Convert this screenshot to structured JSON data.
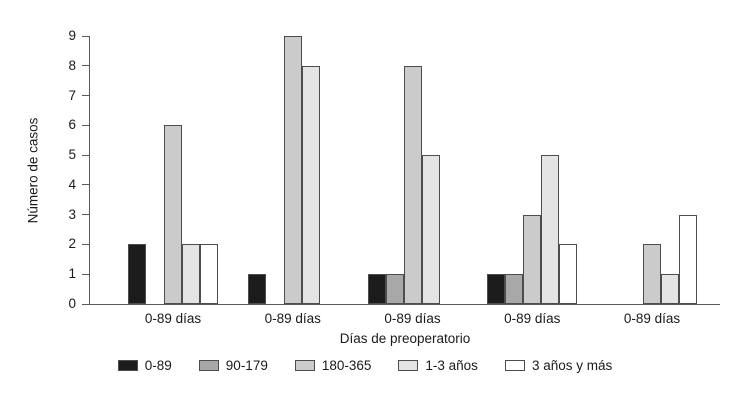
{
  "chart_data": {
    "type": "bar",
    "title": "",
    "xlabel": "Días de preoperatorio",
    "ylabel": "Número de casos",
    "categories": [
      "0-89 días",
      "0-89 días",
      "0-89 días",
      "0-89 días",
      "0-89 días"
    ],
    "series": [
      {
        "name": "0-89",
        "color": "#1c1c1c",
        "values": [
          2,
          1,
          1,
          1,
          0
        ]
      },
      {
        "name": "90-179",
        "color": "#a8a8a8",
        "values": [
          0,
          0,
          1,
          1,
          0
        ]
      },
      {
        "name": "180-365",
        "color": "#cbcbcb",
        "values": [
          6,
          9,
          8,
          3,
          2
        ]
      },
      {
        "name": "1-3 años",
        "color": "#e4e4e4",
        "values": [
          2,
          8,
          5,
          5,
          1
        ]
      },
      {
        "name": "3 años y más",
        "color": "#ffffff",
        "values": [
          2,
          0,
          0,
          2,
          3
        ]
      }
    ],
    "ylim": [
      0,
      9
    ],
    "yticks": [
      0,
      1,
      2,
      3,
      4,
      5,
      6,
      7,
      8,
      9
    ],
    "legend_position": "bottom",
    "grid": false,
    "bar_border_color": "#4d4d4d",
    "axis_color": "#5a5a5a"
  }
}
